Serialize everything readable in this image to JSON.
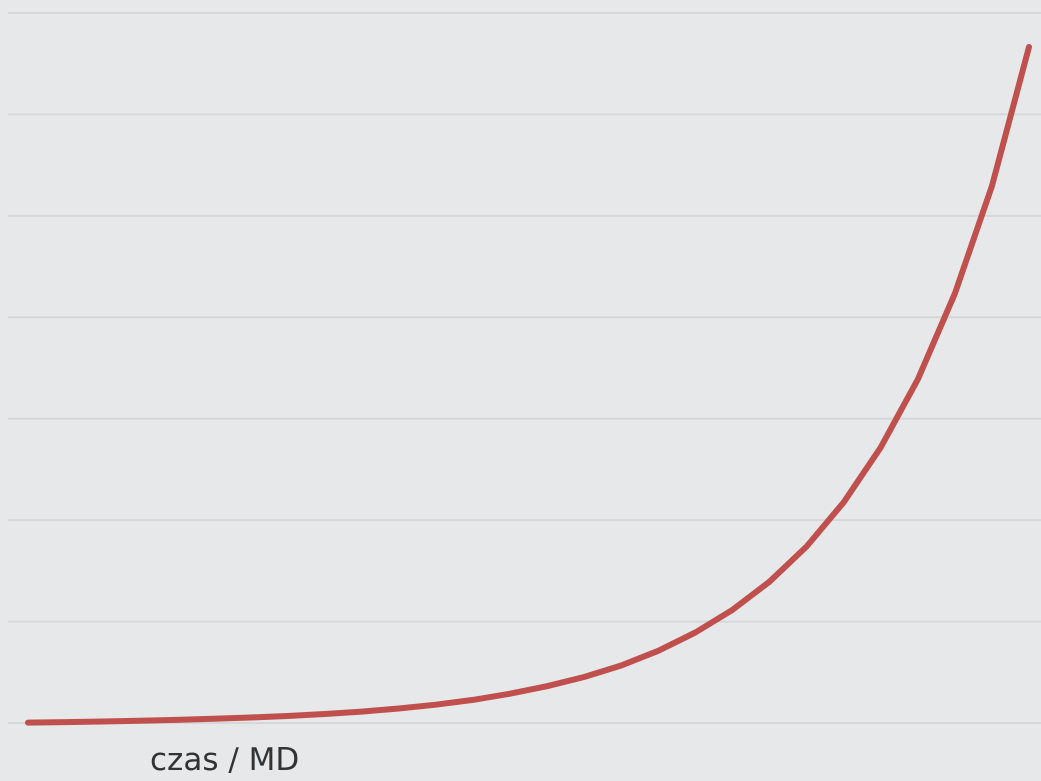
{
  "chart_data": {
    "type": "line",
    "title": "",
    "xlabel": "czas / MD",
    "ylabel": "",
    "grid": true,
    "legend": "none",
    "y_gridlines": 8,
    "series": [
      {
        "x": [
          0,
          1,
          2,
          3,
          4,
          5,
          6,
          7,
          8,
          9,
          10,
          11,
          12,
          13,
          14,
          15,
          16,
          17,
          18,
          19,
          20,
          21,
          22,
          23,
          24,
          25,
          26,
          27
        ],
        "y": [
          0.002,
          0.004,
          0.007,
          0.01,
          0.014,
          0.019,
          0.025,
          0.032,
          0.041,
          0.052,
          0.066,
          0.083,
          0.105,
          0.133,
          0.167,
          0.209,
          0.261,
          0.328,
          0.411,
          0.514,
          0.642,
          0.802,
          1.002,
          1.252,
          1.561,
          1.951,
          2.439,
          3.071
        ]
      }
    ],
    "colors": {
      "line": "#c0504d",
      "grid": "#d6d7d8",
      "background": "#e7e8e9"
    }
  }
}
